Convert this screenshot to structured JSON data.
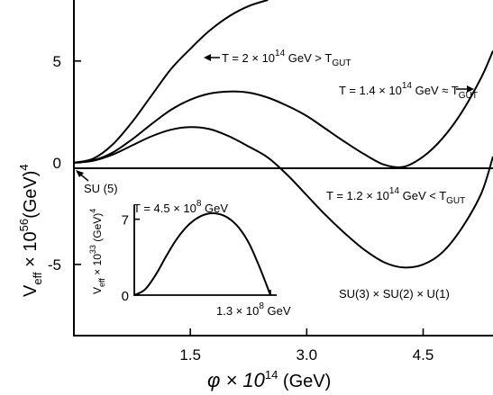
{
  "chart_data": [
    {
      "type": "line",
      "xlabel_main": "φ × 10",
      "xlabel_exp": "14",
      "xlabel_unit": " (GeV)",
      "ylabel_main": "V",
      "ylabel_sub": "eff",
      "ylabel_mid": " × 10",
      "ylabel_exp": "56",
      "ylabel_unit": "(GeV)",
      "ylabel_pow": "4",
      "xlim": [
        0,
        5.4
      ],
      "ylim": [
        -8.5,
        8
      ],
      "x_ticks": [
        {
          "value": 1.5,
          "label": "1.5"
        },
        {
          "value": 3.0,
          "label": "3.0"
        },
        {
          "value": 4.5,
          "label": "4.5"
        }
      ],
      "y_ticks": [
        {
          "value": 5,
          "label": "5"
        },
        {
          "value": 0,
          "label": "0"
        },
        {
          "value": -5,
          "label": "-5"
        }
      ],
      "series": [
        {
          "name": "T = 2 × 10^14 GeV > T_GUT",
          "x": [
            0,
            0.25,
            0.5,
            0.75,
            1.0,
            1.25,
            1.5,
            1.75,
            2.0,
            2.25,
            2.5
          ],
          "y": [
            0,
            0.2,
            0.9,
            2.0,
            3.3,
            4.6,
            5.6,
            6.5,
            7.2,
            7.7,
            8.0
          ]
        },
        {
          "name": "T = 1.4 × 10^14 GeV ≈ T_GUT",
          "x": [
            0,
            0.25,
            0.5,
            0.75,
            1.0,
            1.25,
            1.5,
            1.75,
            2.0,
            2.25,
            2.5,
            2.75,
            3.0,
            3.25,
            3.5,
            3.75,
            4.0,
            4.25,
            4.5,
            4.75,
            5.0,
            5.25,
            5.4
          ],
          "y": [
            0,
            0.12,
            0.5,
            1.15,
            1.9,
            2.6,
            3.1,
            3.4,
            3.5,
            3.45,
            3.2,
            2.8,
            2.3,
            1.65,
            1.0,
            0.4,
            -0.1,
            -0.2,
            0.3,
            1.2,
            2.5,
            4.2,
            5.5
          ]
        },
        {
          "name": "T = 1.2 × 10^14 GeV < T_GUT",
          "x": [
            0,
            0.25,
            0.5,
            0.75,
            1.0,
            1.25,
            1.5,
            1.75,
            2.0,
            2.25,
            2.5,
            2.75,
            3.0,
            3.25,
            3.5,
            3.75,
            4.0,
            4.25,
            4.5,
            4.75,
            5.0,
            5.25,
            5.4
          ],
          "y": [
            0,
            0.1,
            0.4,
            0.85,
            1.3,
            1.62,
            1.75,
            1.65,
            1.3,
            0.8,
            0.25,
            -0.6,
            -1.6,
            -2.6,
            -3.5,
            -4.3,
            -4.9,
            -5.15,
            -5.0,
            -4.4,
            -3.2,
            -1.5,
            0.3
          ]
        }
      ],
      "annotations": {
        "t2_label": "T = 2 × 10",
        "t2_exp": "14",
        "t2_rest": " GeV > T",
        "t2_sub": "GUT",
        "t14_label": "T = 1.4 × 10",
        "t14_exp": "14",
        "t14_rest": " GeV ≈ T",
        "t14_sub": "GUT",
        "t12_label": "T = 1.2 × 10",
        "t12_exp": "14",
        "t12_rest": " GeV < T",
        "t12_sub": "GUT",
        "su5": "SU (5)",
        "su321": "SU(3) × SU(2) × U(1)"
      }
    },
    {
      "type": "line",
      "inset": true,
      "title_main": "T = 4.5 × 10",
      "title_exp": "8",
      "title_unit": " GeV",
      "ylabel_main": "V",
      "ylabel_sub": "eff",
      "ylabel_mid": " × 10",
      "ylabel_exp": "33",
      "ylabel_unit": " (GeV)",
      "ylabel_pow": "4",
      "xlim": [
        0,
        1.3
      ],
      "ylim": [
        0,
        8.3
      ],
      "y_ticks": [
        {
          "value": 7,
          "label": "7"
        },
        {
          "value": 0,
          "label": "0"
        }
      ],
      "x_tick_value": 1.3,
      "x_tick_main": "1.3 × 10",
      "x_tick_exp": "8",
      "x_tick_unit": " GeV",
      "series": [
        {
          "x": [
            0,
            0.1,
            0.2,
            0.3,
            0.4,
            0.5,
            0.6,
            0.7,
            0.8,
            0.9,
            1.0,
            1.1,
            1.2,
            1.3
          ],
          "y": [
            0,
            0.5,
            1.8,
            3.5,
            5.1,
            6.3,
            7.1,
            7.5,
            7.5,
            7.1,
            6.2,
            4.7,
            2.5,
            0
          ]
        }
      ]
    }
  ]
}
